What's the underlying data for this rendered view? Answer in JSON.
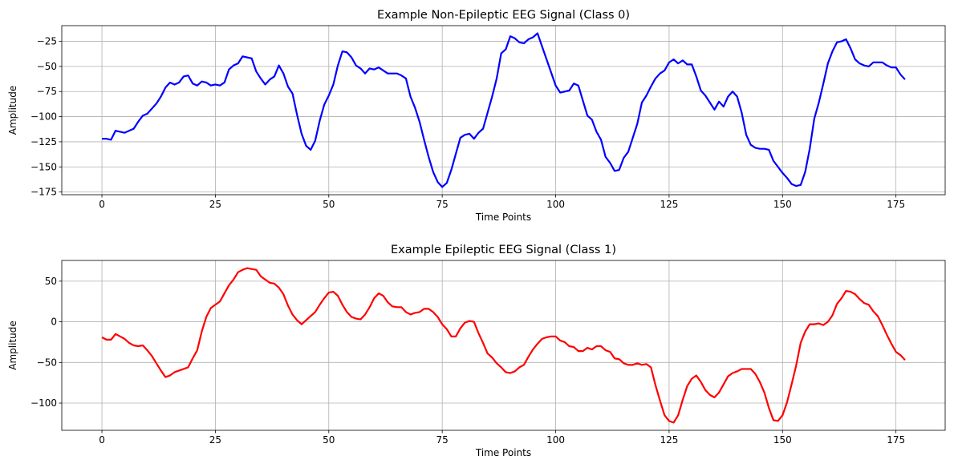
{
  "chart_data": [
    {
      "type": "line",
      "title": "Example Non-Epileptic EEG Signal (Class 0)",
      "x_label": "Time Points",
      "y_label": "Amplitude",
      "grid": true,
      "x": [
        0,
        1,
        2,
        3,
        4,
        5,
        6,
        7,
        8,
        9,
        10,
        11,
        12,
        13,
        14,
        15,
        16,
        17,
        18,
        19,
        20,
        21,
        22,
        23,
        24,
        25,
        26,
        27,
        28,
        29,
        30,
        31,
        32,
        33,
        34,
        35,
        36,
        37,
        38,
        39,
        40,
        41,
        42,
        43,
        44,
        45,
        46,
        47,
        48,
        49,
        50,
        51,
        52,
        53,
        54,
        55,
        56,
        57,
        58,
        59,
        60,
        61,
        62,
        63,
        64,
        65,
        66,
        67,
        68,
        69,
        70,
        71,
        72,
        73,
        74,
        75,
        76,
        77,
        78,
        79,
        80,
        81,
        82,
        83,
        84,
        85,
        86,
        87,
        88,
        89,
        90,
        91,
        92,
        93,
        94,
        95,
        96,
        97,
        98,
        99,
        100,
        101,
        102,
        103,
        104,
        105,
        106,
        107,
        108,
        109,
        110,
        111,
        112,
        113,
        114,
        115,
        116,
        117,
        118,
        119,
        120,
        121,
        122,
        123,
        124,
        125,
        126,
        127,
        128,
        129,
        130,
        131,
        132,
        133,
        134,
        135,
        136,
        137,
        138,
        139,
        140,
        141,
        142,
        143,
        144,
        145,
        146,
        147,
        148,
        149,
        150,
        151,
        152,
        153,
        154,
        155,
        156,
        157,
        158,
        159,
        160,
        161,
        162,
        163,
        164,
        165,
        166,
        167,
        168,
        169,
        170,
        171,
        172,
        173,
        174,
        175,
        176,
        177
      ],
      "series": [
        {
          "color": "#0000ff",
          "values": [
            -122,
            -122,
            -123,
            -114,
            -115,
            -116,
            -114,
            -112,
            -105,
            -99,
            -97,
            -92,
            -87,
            -80,
            -71,
            -66,
            -68,
            -66,
            -60,
            -59,
            -67,
            -69,
            -65,
            -66,
            -69,
            -68,
            -69,
            -66,
            -53,
            -49,
            -47,
            -40,
            -41,
            -42,
            -55,
            -62,
            -68,
            -63,
            -60,
            -49,
            -57,
            -70,
            -77,
            -98,
            -117,
            -129,
            -133,
            -124,
            -104,
            -88,
            -79,
            -68,
            -49,
            -35,
            -36,
            -41,
            -49,
            -52,
            -57,
            -52,
            -53,
            -51,
            -54,
            -57,
            -57,
            -57,
            -59,
            -62,
            -80,
            -91,
            -105,
            -123,
            -140,
            -155,
            -165,
            -170,
            -166,
            -153,
            -137,
            -121,
            -118,
            -117,
            -122,
            -116,
            -112,
            -96,
            -80,
            -62,
            -37,
            -33,
            -20,
            -22,
            -26,
            -27,
            -23,
            -21,
            -17,
            -30,
            -43,
            -56,
            -69,
            -76,
            -75,
            -74,
            -67,
            -69,
            -84,
            -99,
            -103,
            -115,
            -123,
            -140,
            -146,
            -154,
            -153,
            -141,
            -135,
            -121,
            -107,
            -86,
            -79,
            -70,
            -62,
            -57,
            -54,
            -46,
            -43,
            -47,
            -44,
            -48,
            -48,
            -60,
            -74,
            -79,
            -86,
            -93,
            -85,
            -90,
            -80,
            -75,
            -80,
            -96,
            -118,
            -128,
            -131,
            -132,
            -132,
            -133,
            -144,
            -150,
            -156,
            -161,
            -167,
            -169,
            -168,
            -155,
            -132,
            -102,
            -86,
            -67,
            -47,
            -35,
            -26,
            -25,
            -23,
            -32,
            -43,
            -47,
            -49,
            -50,
            -46,
            -46,
            -46,
            -49,
            -51,
            -51,
            -58,
            -63
          ]
        }
      ],
      "xlim": [
        -8.85,
        185.85
      ],
      "xticks": [
        0,
        25,
        50,
        75,
        100,
        125,
        150,
        175
      ],
      "ylim": [
        -177.7,
        -9.4
      ],
      "yticks": [
        {
          "value": -175,
          "label": "−175"
        },
        {
          "value": -150,
          "label": "−150"
        },
        {
          "value": -125,
          "label": "−125"
        },
        {
          "value": -100,
          "label": "−100"
        },
        {
          "value": -75,
          "label": "−75"
        },
        {
          "value": -50,
          "label": "−50"
        },
        {
          "value": -25,
          "label": "−25"
        }
      ]
    },
    {
      "type": "line",
      "title": "Example Epileptic EEG Signal (Class 1)",
      "x_label": "Time Points",
      "y_label": "Amplitude",
      "grid": true,
      "x": [
        0,
        1,
        2,
        3,
        4,
        5,
        6,
        7,
        8,
        9,
        10,
        11,
        12,
        13,
        14,
        15,
        16,
        17,
        18,
        19,
        20,
        21,
        22,
        23,
        24,
        25,
        26,
        27,
        28,
        29,
        30,
        31,
        32,
        33,
        34,
        35,
        36,
        37,
        38,
        39,
        40,
        41,
        42,
        43,
        44,
        45,
        46,
        47,
        48,
        49,
        50,
        51,
        52,
        53,
        54,
        55,
        56,
        57,
        58,
        59,
        60,
        61,
        62,
        63,
        64,
        65,
        66,
        67,
        68,
        69,
        70,
        71,
        72,
        73,
        74,
        75,
        76,
        77,
        78,
        79,
        80,
        81,
        82,
        83,
        84,
        85,
        86,
        87,
        88,
        89,
        90,
        91,
        92,
        93,
        94,
        95,
        96,
        97,
        98,
        99,
        100,
        101,
        102,
        103,
        104,
        105,
        106,
        107,
        108,
        109,
        110,
        111,
        112,
        113,
        114,
        115,
        116,
        117,
        118,
        119,
        120,
        121,
        122,
        123,
        124,
        125,
        126,
        127,
        128,
        129,
        130,
        131,
        132,
        133,
        134,
        135,
        136,
        137,
        138,
        139,
        140,
        141,
        142,
        143,
        144,
        145,
        146,
        147,
        148,
        149,
        150,
        151,
        152,
        153,
        154,
        155,
        156,
        157,
        158,
        159,
        160,
        161,
        162,
        163,
        164,
        165,
        166,
        167,
        168,
        169,
        170,
        171,
        172,
        173,
        174,
        175,
        176,
        177
      ],
      "series": [
        {
          "color": "#ff0000",
          "values": [
            -19,
            -22,
            -22,
            -15,
            -18,
            -21,
            -26,
            -29,
            -30,
            -29,
            -35,
            -42,
            -51,
            -60,
            -68,
            -66,
            -62,
            -60,
            -58,
            -56,
            -45,
            -35,
            -12,
            6,
            17,
            21,
            25,
            35,
            45,
            52,
            61,
            64,
            66,
            65,
            64,
            56,
            52,
            48,
            47,
            42,
            34,
            20,
            9,
            2,
            -3,
            2,
            7,
            12,
            21,
            29,
            36,
            37,
            32,
            21,
            12,
            6,
            4,
            3,
            9,
            18,
            29,
            35,
            32,
            24,
            19,
            18,
            18,
            12,
            9,
            11,
            12,
            16,
            16,
            12,
            6,
            -3,
            -9,
            -18,
            -18,
            -8,
            -1,
            1,
            0,
            -14,
            -26,
            -39,
            -44,
            -51,
            -56,
            -62,
            -63,
            -61,
            -56,
            -53,
            -43,
            -34,
            -27,
            -21,
            -19,
            -18,
            -18,
            -23,
            -25,
            -30,
            -31,
            -36,
            -36,
            -32,
            -34,
            -30,
            -30,
            -35,
            -37,
            -45,
            -46,
            -51,
            -53,
            -53,
            -51,
            -53,
            -52,
            -56,
            -78,
            -97,
            -115,
            -122,
            -124,
            -115,
            -96,
            -79,
            -70,
            -66,
            -74,
            -84,
            -90,
            -93,
            -87,
            -77,
            -67,
            -63,
            -61,
            -58,
            -58,
            -58,
            -64,
            -74,
            -87,
            -106,
            -121,
            -122,
            -115,
            -99,
            -77,
            -54,
            -26,
            -12,
            -3,
            -3,
            -2,
            -4,
            0,
            8,
            22,
            29,
            38,
            37,
            34,
            28,
            23,
            21,
            13,
            7,
            -4,
            -16,
            -27,
            -37,
            -41,
            -47
          ]
        }
      ],
      "xlim": [
        -8.85,
        185.85
      ],
      "xticks": [
        0,
        25,
        50,
        75,
        100,
        125,
        150,
        175
      ],
      "ylim": [
        -133.5,
        75.5
      ],
      "yticks": [
        {
          "value": -100,
          "label": "−100"
        },
        {
          "value": -50,
          "label": "−50"
        },
        0,
        50
      ]
    }
  ]
}
